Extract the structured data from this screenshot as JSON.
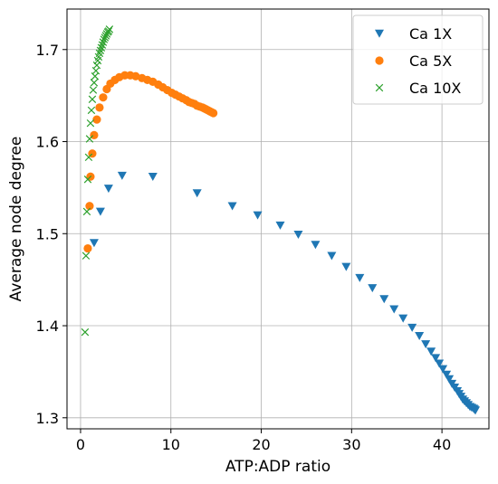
{
  "chart_data": {
    "type": "scatter",
    "title": "",
    "xlabel": "ATP:ADP ratio",
    "ylabel": "Average node degree",
    "xlim": [
      -1.5,
      45.2
    ],
    "ylim": [
      1.288,
      1.744
    ],
    "xticks": [
      0,
      10,
      20,
      30,
      40
    ],
    "xtick_labels": [
      "0",
      "10",
      "20",
      "30",
      "40"
    ],
    "yticks": [
      1.3,
      1.4,
      1.5,
      1.6,
      1.7
    ],
    "ytick_labels": [
      "1.3",
      "1.4",
      "1.5",
      "1.6",
      "1.7"
    ],
    "grid": true,
    "legend": "top-right",
    "series": [
      {
        "name": "Ca 1X",
        "marker": "triangle-down",
        "color": "#1f77b4",
        "x": [
          1.5,
          2.2,
          3.1,
          4.6,
          8.0,
          12.9,
          16.8,
          19.6,
          22.1,
          24.1,
          26.0,
          27.8,
          29.4,
          30.9,
          32.3,
          33.6,
          34.7,
          35.7,
          36.7,
          37.5,
          38.2,
          38.8,
          39.3,
          39.7,
          40.1,
          40.5,
          40.8,
          41.1,
          41.4,
          41.7,
          41.9,
          42.1,
          42.3,
          42.5,
          42.7,
          42.9,
          43.1,
          43.3,
          43.5,
          43.6,
          43.7
        ],
        "y": [
          1.49,
          1.524,
          1.549,
          1.563,
          1.562,
          1.544,
          1.53,
          1.52,
          1.509,
          1.499,
          1.488,
          1.476,
          1.464,
          1.452,
          1.441,
          1.429,
          1.418,
          1.408,
          1.398,
          1.389,
          1.38,
          1.372,
          1.365,
          1.359,
          1.353,
          1.347,
          1.342,
          1.337,
          1.333,
          1.329,
          1.326,
          1.323,
          1.32,
          1.318,
          1.316,
          1.314,
          1.312,
          1.311,
          1.31,
          1.309,
          1.308
        ]
      },
      {
        "name": "Ca 5X",
        "marker": "circle",
        "color": "#ff7f0e",
        "x": [
          0.8,
          1.0,
          1.1,
          1.3,
          1.5,
          1.8,
          2.1,
          2.5,
          2.9,
          3.3,
          3.8,
          4.3,
          4.9,
          5.5,
          6.1,
          6.8,
          7.4,
          8.0,
          8.6,
          9.1,
          9.6,
          10.1,
          10.5,
          10.9,
          11.3,
          11.7,
          12.0,
          12.3,
          12.6,
          12.9,
          13.2,
          13.5,
          13.7,
          13.9,
          14.1,
          14.3,
          14.5,
          14.7
        ],
        "y": [
          1.484,
          1.53,
          1.562,
          1.587,
          1.607,
          1.624,
          1.637,
          1.648,
          1.657,
          1.663,
          1.667,
          1.67,
          1.672,
          1.672,
          1.671,
          1.669,
          1.667,
          1.665,
          1.662,
          1.659,
          1.656,
          1.653,
          1.651,
          1.649,
          1.647,
          1.645,
          1.643,
          1.642,
          1.641,
          1.639,
          1.638,
          1.637,
          1.636,
          1.635,
          1.634,
          1.633,
          1.632,
          1.631
        ]
      },
      {
        "name": "Ca 10X",
        "marker": "x",
        "color": "#2ca02c",
        "x": [
          0.5,
          0.6,
          0.7,
          0.8,
          0.9,
          1.0,
          1.1,
          1.2,
          1.3,
          1.4,
          1.5,
          1.6,
          1.7,
          1.8,
          1.9,
          2.0,
          2.1,
          2.2,
          2.3,
          2.4,
          2.5,
          2.6,
          2.7,
          2.8,
          2.9,
          3.0,
          3.1,
          3.2
        ],
        "y": [
          1.393,
          1.476,
          1.524,
          1.559,
          1.583,
          1.603,
          1.62,
          1.634,
          1.646,
          1.656,
          1.664,
          1.671,
          1.677,
          1.683,
          1.688,
          1.692,
          1.696,
          1.699,
          1.702,
          1.705,
          1.708,
          1.711,
          1.713,
          1.715,
          1.717,
          1.719,
          1.72,
          1.722
        ]
      }
    ]
  }
}
